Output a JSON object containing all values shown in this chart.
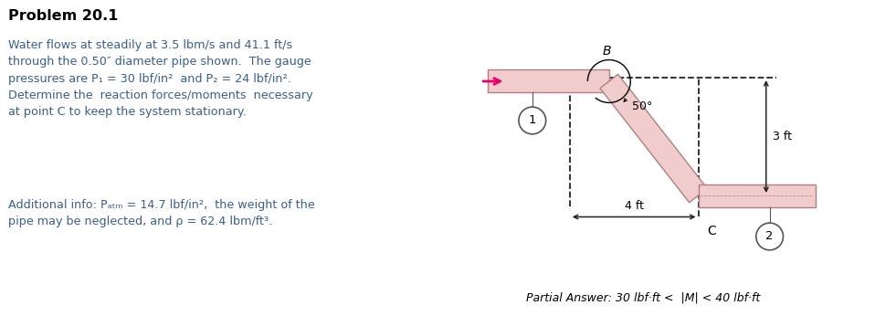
{
  "title": "Problem 20.1",
  "text_line1": "Water flows at steadily at 3.5 lbm/s and 41.1 ft/s",
  "text_line2": "through the 0.50″ diameter pipe shown.  The gauge",
  "text_line3": "pressures are P₁ = 30 lbf/in²  and P₂ = 24 lbf/in².",
  "text_line4": "Determine the  reaction forces/moments  necessary",
  "text_line5": "at point C to keep the system stationary.",
  "text_line6": "Additional info: Pₐₜₘ = 14.7 lbf/in²,  the weight of the",
  "text_line7": "pipe may be neglected, and ρ = 62.4 lbm/ft³.",
  "partial_answer": "Partial Answer: 30 lbf·ft <  |M| < 40 lbf·ft",
  "pipe_fill_color": "#f0cccc",
  "pipe_edge_color": "#b08080",
  "pipe_inner_color": "#d8b0b0",
  "arrow_color": "#e8006a",
  "text_color": "#3a5f8a",
  "title_color": "#000000",
  "dim_color": "#222222",
  "angle_label": "50°",
  "dim_4ft": "4 ft",
  "dim_3ft": "3 ft",
  "label_B": "B",
  "label_C": "C",
  "label_1": "1",
  "label_2": "2"
}
